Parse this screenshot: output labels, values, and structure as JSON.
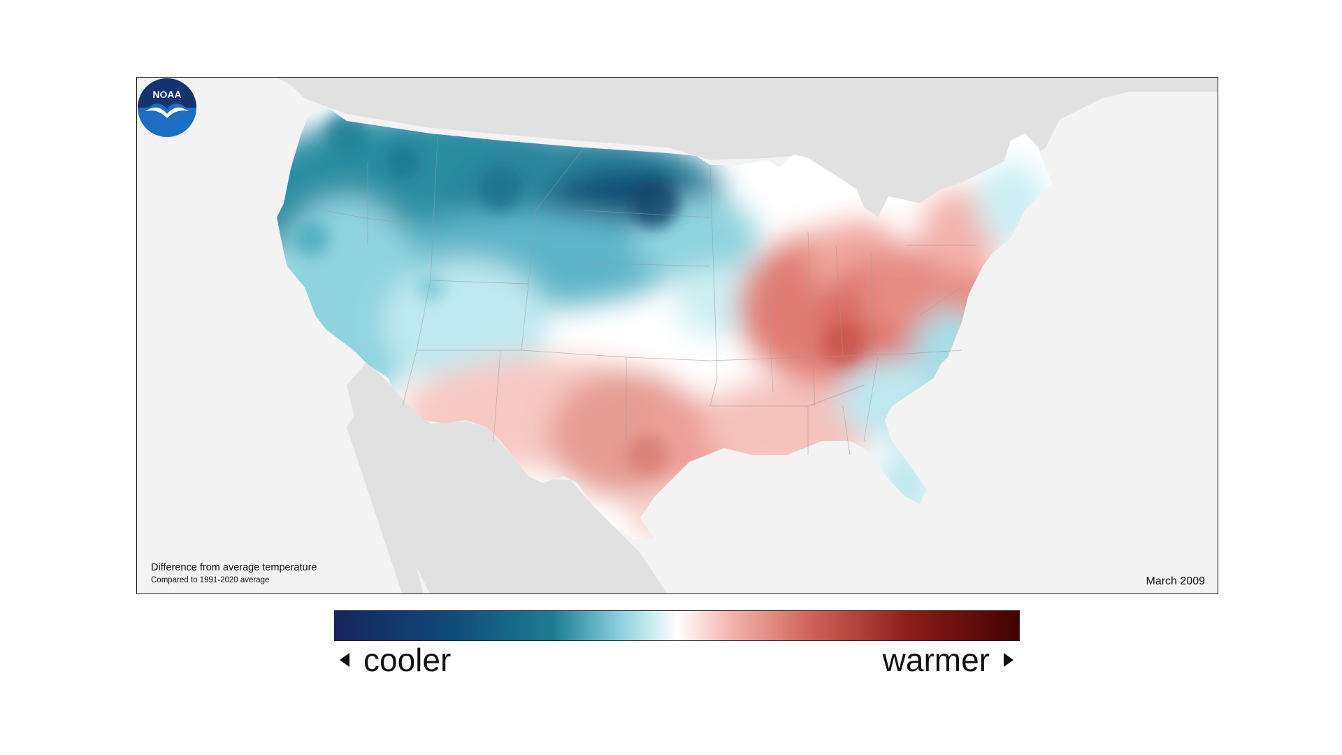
{
  "map": {
    "caption_title": "Difference from average temperature",
    "caption_subtitle": "Compared to 1991-2020 average",
    "date": "March 2009",
    "logo_text": "NOAA",
    "land_color": "#e1e1e1",
    "ocean_color": "#f3f3f3",
    "anomaly_regions": [
      {
        "region": "Pacific Northwest / Northern Plains",
        "anomaly": "cooler",
        "color": "#1f7f95"
      },
      {
        "region": "North Dakota",
        "anomaly": "cooler",
        "color": "#0b4d74"
      },
      {
        "region": "California / Great Basin",
        "anomaly": "cooler",
        "color": "#9fdbe4"
      },
      {
        "region": "Ohio Valley",
        "anomaly": "warmer",
        "color": "#d9756c"
      },
      {
        "region": "Texas / Southern Plains",
        "anomaly": "warmer",
        "color": "#e59c93"
      },
      {
        "region": "Southeast coast / Florida",
        "anomaly": "cooler",
        "color": "#b9e7ee"
      }
    ]
  },
  "legend": {
    "left_label": "cooler",
    "right_label": "warmer",
    "colors": [
      "#17245e",
      "#0f4a78",
      "#1d7e93",
      "#8fd3df",
      "#ffffff",
      "#f3b3ac",
      "#cf5f58",
      "#8c1d1b",
      "#430000"
    ]
  }
}
